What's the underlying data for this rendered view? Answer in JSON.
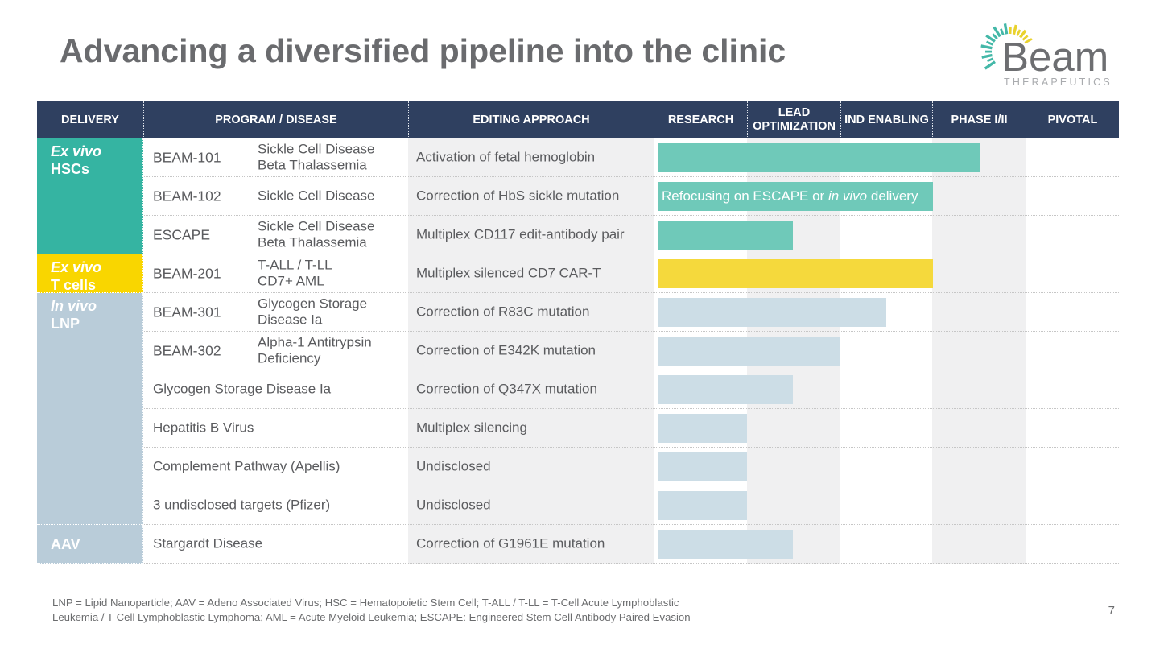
{
  "slide": {
    "title": "Advancing a diversified pipeline into the clinic",
    "page_number": "7"
  },
  "logo": {
    "brand": "Beam",
    "sub": "THERAPEUTICS"
  },
  "colors": {
    "header_navy": "#2f4060",
    "title_gray": "#6a6b6e",
    "body_text_gray": "#5a5b5e",
    "stripe_gray": "#f0f0f1",
    "group_teal": "#35b4a2",
    "group_yellow": "#f9d600",
    "group_blue": "#b9ccd9",
    "bar_teal": "#6fc9b9",
    "bar_yellow": "#f5d93c",
    "bar_blue": "#ccdde6",
    "logo_teal": "#44b8a8",
    "logo_yellow": "#e9d22e"
  },
  "table": {
    "headers": [
      "DELIVERY",
      "PROGRAM / DISEASE",
      "EDITING APPROACH",
      "RESEARCH",
      "LEAD OPTIMIZATION",
      "IND ENABLING",
      "PHASE I/II",
      "PIVOTAL"
    ],
    "stage_names": [
      "RESEARCH",
      "LEAD OPTIMIZATION",
      "IND ENABLING",
      "PHASE I/II",
      "PIVOTAL"
    ],
    "groups": [
      {
        "lines": [
          {
            "text": "Ex vivo",
            "italic": true
          },
          {
            "text": "HSCs"
          }
        ],
        "color": "teal",
        "row_span": 3
      },
      {
        "lines": [
          {
            "text": "Ex vivo",
            "italic": true
          },
          {
            "text": "T cells"
          }
        ],
        "color": "yellow",
        "row_span": 1
      },
      {
        "lines": [
          {
            "text": "In vivo",
            "italic": true
          },
          {
            "text": "LNP"
          }
        ],
        "color": "blue",
        "row_span": 6
      },
      {
        "lines": [
          {
            "text": "AAV"
          }
        ],
        "color": "blue",
        "row_span": 1
      }
    ],
    "rows": [
      {
        "program": "BEAM-101",
        "disease": [
          "Sickle Cell Disease",
          "Beta Thalassemia"
        ],
        "approach": "Activation of fetal hemoglobin",
        "bar": {
          "end_stage": 3.5,
          "color": "teal"
        }
      },
      {
        "program": "BEAM-102",
        "disease": [
          "Sickle Cell Disease"
        ],
        "approach": "Correction of HbS sickle mutation",
        "bar": {
          "end_stage": 3.0,
          "color": "teal",
          "label_parts": [
            {
              "text": "Refocusing on ESCAPE or "
            },
            {
              "text": "in vivo",
              "italic": true
            },
            {
              "text": " delivery"
            }
          ]
        }
      },
      {
        "program": "ESCAPE",
        "disease": [
          "Sickle Cell Disease",
          "Beta Thalassemia"
        ],
        "approach": "Multiplex CD117 edit-antibody pair",
        "bar": {
          "end_stage": 1.5,
          "color": "teal"
        }
      },
      {
        "program": "BEAM-201",
        "disease": [
          "T-ALL / T-LL",
          "CD7+ AML"
        ],
        "approach": "Multiplex silenced CD7 CAR-T",
        "bar": {
          "end_stage": 3.0,
          "color": "yellow"
        }
      },
      {
        "program": "BEAM-301",
        "disease": [
          "Glycogen Storage",
          "Disease Ia"
        ],
        "approach": "Correction of R83C mutation",
        "bar": {
          "end_stage": 2.5,
          "color": "blue"
        }
      },
      {
        "program": "BEAM-302",
        "disease": [
          "Alpha-1 Antitrypsin",
          "Deficiency"
        ],
        "approach": "Correction of E342K mutation",
        "bar": {
          "end_stage": 2.0,
          "color": "blue"
        }
      },
      {
        "program": null,
        "disease": [
          "Glycogen Storage Disease Ia"
        ],
        "approach": "Correction of Q347X mutation",
        "bar": {
          "end_stage": 1.5,
          "color": "blue"
        }
      },
      {
        "program": null,
        "disease": [
          "Hepatitis B Virus"
        ],
        "approach": "Multiplex silencing",
        "bar": {
          "end_stage": 1.0,
          "color": "blue"
        }
      },
      {
        "program": null,
        "disease": [
          "Complement Pathway (Apellis)"
        ],
        "approach": "Undisclosed",
        "bar": {
          "end_stage": 1.0,
          "color": "blue"
        }
      },
      {
        "program": null,
        "disease": [
          "3 undisclosed targets (Pfizer)"
        ],
        "approach": "Undisclosed",
        "bar": {
          "end_stage": 1.0,
          "color": "blue"
        }
      },
      {
        "program": null,
        "disease": [
          "Stargardt Disease"
        ],
        "approach": "Correction of G1961E mutation",
        "bar": {
          "end_stage": 1.5,
          "color": "blue"
        }
      }
    ]
  },
  "footnote": {
    "line1": "LNP = Lipid Nanoparticle; AAV = Adeno Associated Virus; HSC = Hematopoietic Stem Cell; T-ALL / T-LL = T-Cell Acute Lymphoblastic",
    "line2_prefix": "Leukemia / T-Cell Lymphoblastic Lymphoma; AML = Acute Myeloid Leukemia; ESCAPE: ",
    "escape_words": [
      "Engineered",
      "Stem",
      "Cell",
      "Antibody",
      "Paired",
      "Evasion"
    ]
  }
}
